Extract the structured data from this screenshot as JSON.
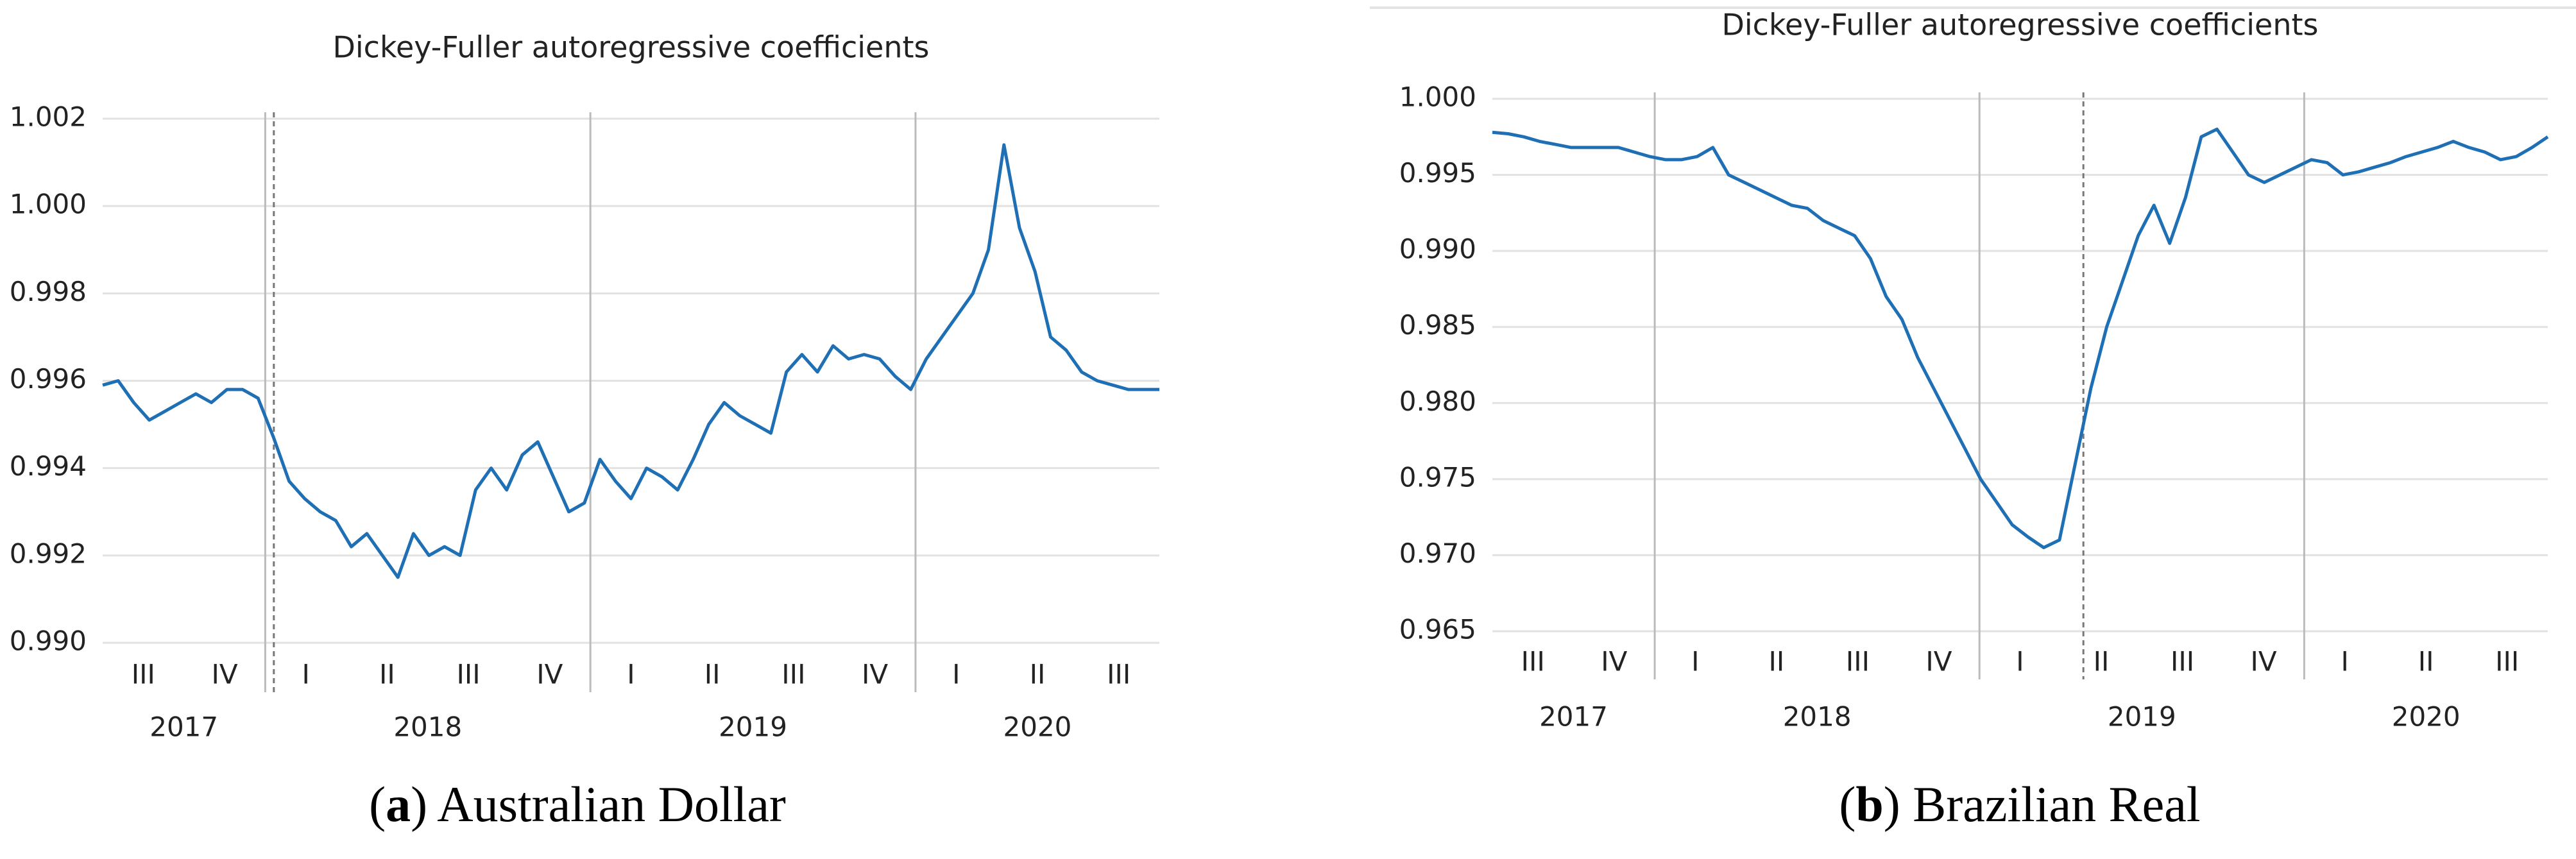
{
  "chart_data": [
    {
      "type": "line",
      "title": "Dickey-Fuller autoregressive coefficients",
      "caption_parts": [
        "(",
        "a",
        ") Australian Dollar"
      ],
      "quarters": [
        "III",
        "IV",
        "I",
        "II",
        "III",
        "IV",
        "I",
        "II",
        "III",
        "IV",
        "I",
        "II",
        "III"
      ],
      "years": [
        "2017",
        "2018",
        "2019",
        "2020"
      ],
      "ylim": [
        0.99,
        1.002
      ],
      "yticks": [
        {
          "value": 0.99,
          "label": "0.990"
        },
        0.992,
        0.994,
        0.996,
        0.998,
        {
          "value": 1.0,
          "label": "1.000"
        },
        1.002
      ],
      "grid": true,
      "color": "#1f6fb5",
      "values": [
        0.9959,
        0.996,
        0.9955,
        0.9951,
        0.9953,
        0.9955,
        0.9957,
        0.9955,
        0.9958,
        0.9958,
        0.9956,
        0.9947,
        0.9937,
        0.9933,
        0.993,
        0.9928,
        0.9922,
        0.9925,
        0.992,
        0.9915,
        0.9925,
        0.992,
        0.9922,
        0.992,
        0.9935,
        0.994,
        0.9935,
        0.9943,
        0.9946,
        0.9938,
        0.993,
        0.9932,
        0.9942,
        0.9937,
        0.9933,
        0.994,
        0.9938,
        0.9935,
        0.9942,
        0.995,
        0.9955,
        0.9952,
        0.995,
        0.9948,
        0.9962,
        0.9966,
        0.9962,
        0.9968,
        0.9965,
        0.9966,
        0.9965,
        0.9961,
        0.9958,
        0.9965,
        0.997,
        0.9975,
        0.998,
        0.999,
        1.0014,
        0.9995,
        0.9985,
        0.997,
        0.9967,
        0.9962,
        0.996,
        0.9959,
        0.9958,
        0.9958,
        0.9958
      ]
    },
    {
      "type": "line",
      "title": "Dickey-Fuller autoregressive coefficients",
      "caption_parts": [
        "(",
        "b",
        ") Brazilian Real"
      ],
      "quarters": [
        "III",
        "IV",
        "I",
        "II",
        "III",
        "IV",
        "I",
        "II",
        "III",
        "IV",
        "I",
        "II",
        "III"
      ],
      "years": [
        "2017",
        "2018",
        "2019",
        "2020"
      ],
      "ylim": [
        0.965,
        1.0
      ],
      "yticks": [
        0.965,
        {
          "value": 0.97,
          "label": "0.970"
        },
        0.975,
        {
          "value": 0.98,
          "label": "0.980"
        },
        0.985,
        {
          "value": 0.99,
          "label": "0.990"
        },
        0.995,
        {
          "value": 1.0,
          "label": "1.000"
        }
      ],
      "grid": true,
      "color": "#1f6fb5",
      "values": [
        0.9978,
        0.9977,
        0.9975,
        0.9972,
        0.997,
        0.9968,
        0.9968,
        0.9968,
        0.9968,
        0.9965,
        0.9962,
        0.996,
        0.996,
        0.9962,
        0.9968,
        0.995,
        0.9945,
        0.994,
        0.9935,
        0.993,
        0.9928,
        0.992,
        0.9915,
        0.991,
        0.9895,
        0.987,
        0.9855,
        0.983,
        0.981,
        0.979,
        0.977,
        0.975,
        0.9735,
        0.972,
        0.9712,
        0.9705,
        0.971,
        0.976,
        0.981,
        0.985,
        0.988,
        0.991,
        0.993,
        0.9905,
        0.9935,
        0.9975,
        0.998,
        0.9965,
        0.995,
        0.9945,
        0.995,
        0.9955,
        0.996,
        0.9958,
        0.995,
        0.9952,
        0.9955,
        0.9958,
        0.9962,
        0.9965,
        0.9968,
        0.9972,
        0.9968,
        0.9965,
        0.996,
        0.9962,
        0.9968,
        0.9975
      ]
    }
  ]
}
